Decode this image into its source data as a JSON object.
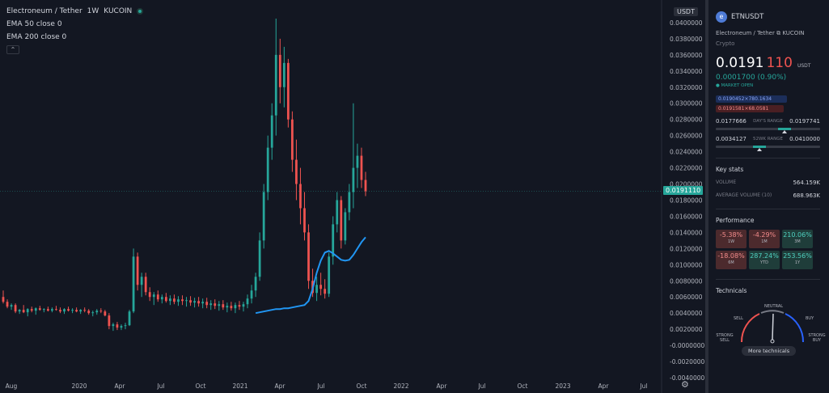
{
  "chart": {
    "symbol_title": "Electroneum / Tether",
    "interval": "1W",
    "exchange": "KUCOIN",
    "ema50_label": "EMA 50 close 0",
    "ema200_label": "EMA 200 close 0",
    "collapse_icon": "chevron-up-icon",
    "currency_tag": "USDT",
    "last_price_tag": "0.0191110",
    "y_ticks": [
      "0.0400000",
      "0.0380000",
      "0.0360000",
      "0.0340000",
      "0.0320000",
      "0.0300000",
      "0.0280000",
      "0.0260000",
      "0.0240000",
      "0.0220000",
      "0.0200000",
      "0.0180000",
      "0.0160000",
      "0.0140000",
      "0.0120000",
      "0.0100000",
      "0.0080000",
      "0.0060000",
      "0.0040000",
      "0.0020000",
      "-0.0000000",
      "-0.0020000",
      "-0.0040000"
    ],
    "x_ticks": [
      "Aug",
      "2020",
      "Apr",
      "Jul",
      "Oct",
      "2021",
      "Apr",
      "Jul",
      "Oct",
      "2022",
      "Apr",
      "Jul",
      "Oct",
      "2023",
      "Apr",
      "Jul"
    ],
    "colors": {
      "up": "#26a69a",
      "down": "#ef5350",
      "ema": "#2196f3",
      "bg": "#131722"
    }
  },
  "chart_data": {
    "type": "candlestick",
    "ylim": [
      -0.0045,
      0.042
    ],
    "candles": [
      [
        0.006,
        0.0068,
        0.0052,
        0.0054
      ],
      [
        0.0054,
        0.0057,
        0.0046,
        0.0048
      ],
      [
        0.0048,
        0.0052,
        0.0044,
        0.005
      ],
      [
        0.005,
        0.0052,
        0.004,
        0.0042
      ],
      [
        0.0042,
        0.0045,
        0.0039,
        0.0044
      ],
      [
        0.0044,
        0.005,
        0.004,
        0.0041
      ],
      [
        0.0041,
        0.0046,
        0.0036,
        0.0045
      ],
      [
        0.0045,
        0.0048,
        0.0041,
        0.0043
      ],
      [
        0.0043,
        0.0047,
        0.0038,
        0.0046
      ],
      [
        0.0046,
        0.0049,
        0.0043,
        0.0044
      ],
      [
        0.0044,
        0.0046,
        0.0041,
        0.0045
      ],
      [
        0.0045,
        0.0048,
        0.0042,
        0.0043
      ],
      [
        0.0043,
        0.0047,
        0.0041,
        0.0045
      ],
      [
        0.0045,
        0.0049,
        0.0043,
        0.0044
      ],
      [
        0.0044,
        0.0047,
        0.004,
        0.0042
      ],
      [
        0.0042,
        0.0046,
        0.0039,
        0.0045
      ],
      [
        0.0045,
        0.0048,
        0.0042,
        0.0043
      ],
      [
        0.0043,
        0.0046,
        0.004,
        0.0044
      ],
      [
        0.0044,
        0.0047,
        0.0041,
        0.0042
      ],
      [
        0.0042,
        0.0045,
        0.0039,
        0.0044
      ],
      [
        0.0044,
        0.0047,
        0.0041,
        0.0043
      ],
      [
        0.0043,
        0.0045,
        0.0038,
        0.004
      ],
      [
        0.004,
        0.0043,
        0.0036,
        0.0041
      ],
      [
        0.0041,
        0.0045,
        0.0038,
        0.0043
      ],
      [
        0.0043,
        0.0046,
        0.004,
        0.0042
      ],
      [
        0.0042,
        0.0044,
        0.0036,
        0.0037
      ],
      [
        0.0037,
        0.004,
        0.002,
        0.0024
      ],
      [
        0.0024,
        0.0028,
        0.0018,
        0.0026
      ],
      [
        0.0026,
        0.0029,
        0.0019,
        0.0022
      ],
      [
        0.0022,
        0.0026,
        0.0019,
        0.0024
      ],
      [
        0.0024,
        0.0028,
        0.002,
        0.0025
      ],
      [
        0.0025,
        0.0044,
        0.0024,
        0.0042
      ],
      [
        0.0042,
        0.012,
        0.004,
        0.011
      ],
      [
        0.011,
        0.0115,
        0.0068,
        0.0075
      ],
      [
        0.0075,
        0.009,
        0.006,
        0.0085
      ],
      [
        0.0085,
        0.009,
        0.0062,
        0.0066
      ],
      [
        0.0066,
        0.0072,
        0.0055,
        0.006
      ],
      [
        0.006,
        0.0066,
        0.005,
        0.0063
      ],
      [
        0.0063,
        0.0068,
        0.0054,
        0.0057
      ],
      [
        0.0057,
        0.0063,
        0.0052,
        0.006
      ],
      [
        0.006,
        0.0065,
        0.0053,
        0.0055
      ],
      [
        0.0055,
        0.0062,
        0.005,
        0.0058
      ],
      [
        0.0058,
        0.0063,
        0.0051,
        0.0054
      ],
      [
        0.0054,
        0.0061,
        0.0049,
        0.0057
      ],
      [
        0.0057,
        0.0062,
        0.005,
        0.0055
      ],
      [
        0.0055,
        0.006,
        0.0048,
        0.0056
      ],
      [
        0.0056,
        0.0061,
        0.0049,
        0.0053
      ],
      [
        0.0053,
        0.0059,
        0.0047,
        0.0055
      ],
      [
        0.0055,
        0.006,
        0.0048,
        0.0052
      ],
      [
        0.0052,
        0.0058,
        0.0046,
        0.0054
      ],
      [
        0.0054,
        0.0059,
        0.0046,
        0.005
      ],
      [
        0.005,
        0.0056,
        0.0044,
        0.0052
      ],
      [
        0.0052,
        0.0057,
        0.0045,
        0.0049
      ],
      [
        0.0049,
        0.0055,
        0.0043,
        0.0051
      ],
      [
        0.0051,
        0.0056,
        0.0044,
        0.0047
      ],
      [
        0.0047,
        0.0053,
        0.0041,
        0.0049
      ],
      [
        0.0049,
        0.0054,
        0.0043,
        0.0046
      ],
      [
        0.0046,
        0.0053,
        0.004,
        0.005
      ],
      [
        0.005,
        0.0055,
        0.0044,
        0.0048
      ],
      [
        0.0048,
        0.0054,
        0.0042,
        0.0051
      ],
      [
        0.0051,
        0.0063,
        0.0046,
        0.0058
      ],
      [
        0.0058,
        0.0075,
        0.0052,
        0.0068
      ],
      [
        0.0068,
        0.009,
        0.006,
        0.0085
      ],
      [
        0.0085,
        0.014,
        0.008,
        0.013
      ],
      [
        0.013,
        0.02,
        0.012,
        0.019
      ],
      [
        0.019,
        0.026,
        0.018,
        0.0245
      ],
      [
        0.0245,
        0.03,
        0.023,
        0.0285
      ],
      [
        0.0285,
        0.0405,
        0.026,
        0.036
      ],
      [
        0.036,
        0.038,
        0.03,
        0.032
      ],
      [
        0.032,
        0.037,
        0.0295,
        0.035
      ],
      [
        0.035,
        0.0355,
        0.027,
        0.028
      ],
      [
        0.028,
        0.029,
        0.0215,
        0.023
      ],
      [
        0.023,
        0.0255,
        0.018,
        0.02
      ],
      [
        0.02,
        0.022,
        0.015,
        0.017
      ],
      [
        0.017,
        0.019,
        0.013,
        0.014
      ],
      [
        0.014,
        0.015,
        0.007,
        0.008
      ],
      [
        0.008,
        0.0095,
        0.006,
        0.0065
      ],
      [
        0.0065,
        0.0085,
        0.0055,
        0.0075
      ],
      [
        0.0075,
        0.009,
        0.0062,
        0.007
      ],
      [
        0.007,
        0.0082,
        0.0058,
        0.0064
      ],
      [
        0.0064,
        0.0115,
        0.006,
        0.011
      ],
      [
        0.011,
        0.016,
        0.01,
        0.015
      ],
      [
        0.015,
        0.019,
        0.014,
        0.018
      ],
      [
        0.018,
        0.0185,
        0.012,
        0.013
      ],
      [
        0.013,
        0.017,
        0.0125,
        0.0165
      ],
      [
        0.0165,
        0.02,
        0.0155,
        0.019
      ],
      [
        0.019,
        0.03,
        0.017,
        0.022
      ],
      [
        0.022,
        0.025,
        0.0195,
        0.0235
      ],
      [
        0.0235,
        0.0245,
        0.0195,
        0.0205
      ],
      [
        0.0205,
        0.0215,
        0.0185,
        0.0191
      ]
    ],
    "ema50": [
      0.004,
      0.0041,
      0.0042,
      0.0043,
      0.0044,
      0.0045,
      0.0045,
      0.0046,
      0.0046,
      0.0047,
      0.0048,
      0.0049,
      0.005,
      0.0055,
      0.007,
      0.009,
      0.0105,
      0.0115,
      0.0117,
      0.0114,
      0.011,
      0.0106,
      0.0105,
      0.0106,
      0.0112,
      0.012,
      0.0128,
      0.0134
    ]
  },
  "panel": {
    "symbol": "ETNUSDT",
    "logo_icon": "etn-logo-icon",
    "full_name": "Electroneum / Tether",
    "exchange": "KUCOIN",
    "category": "Crypto",
    "price_main": "0.0191",
    "price_tail": "110",
    "price_currency": "USDT",
    "change": "0.0001700 (0.90%)",
    "market_status": "● MARKET OPEN",
    "bid": "0.0190452×780.1634",
    "ask": "0.0191581×68.0581",
    "day_low": "0.0177666",
    "day_label": "DAY'S RANGE",
    "day_high": "0.0197741",
    "day_position": 0.66,
    "wk_low": "0.0034127",
    "wk_label": "52WK RANGE",
    "wk_high": "0.0410000",
    "wk_position": 0.42,
    "key_stats_title": "Key stats",
    "volume_label": "VOLUME",
    "volume_value": "564.159K",
    "avg_volume_label": "AVERAGE VOLUME (10)",
    "avg_volume_value": "688.963K",
    "performance_title": "Performance",
    "performance": [
      {
        "value": "-5.38%",
        "label": "1W",
        "dir": "neg"
      },
      {
        "value": "-4.29%",
        "label": "1M",
        "dir": "neg"
      },
      {
        "value": "210.06%",
        "label": "3M",
        "dir": "pos"
      },
      {
        "value": "-18.08%",
        "label": "6M",
        "dir": "neg"
      },
      {
        "value": "287.24%",
        "label": "YTD",
        "dir": "pos"
      },
      {
        "value": "253.56%",
        "label": "1Y",
        "dir": "pos"
      }
    ],
    "technicals_title": "Technicals",
    "gauge": {
      "neutral": "NEUTRAL",
      "sell": "SELL",
      "buy": "BUY",
      "strong_sell": "STRONG SELL",
      "strong_buy": "STRONG BUY"
    },
    "more_button": "More technicals"
  }
}
